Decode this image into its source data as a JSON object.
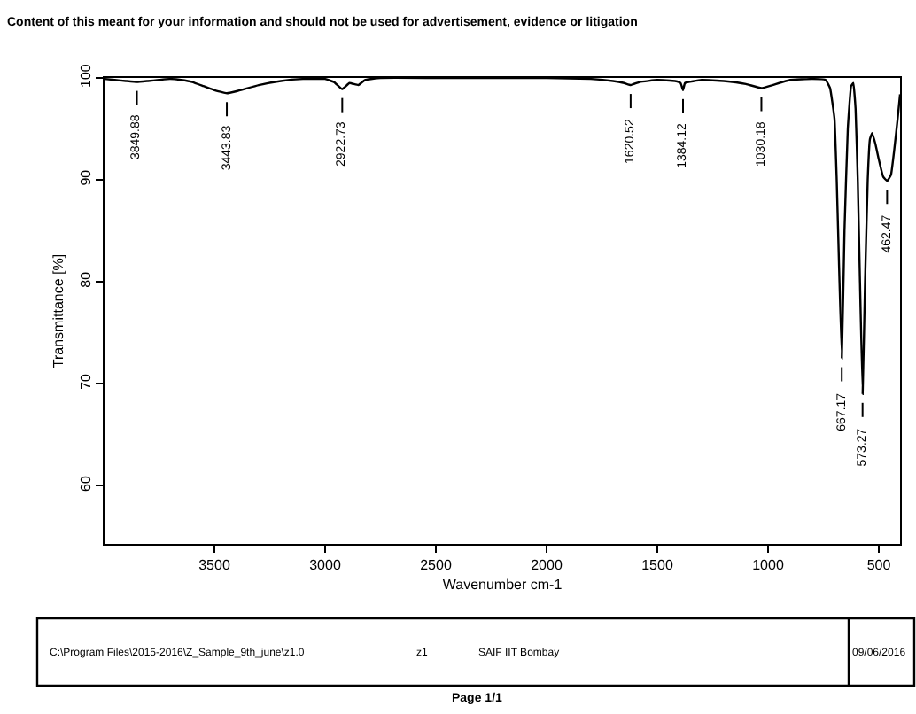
{
  "chart_data": {
    "type": "line",
    "title": "Content of this meant for your information and should not be used for advertisement, evidence or litigation",
    "xlabel": "Wavenumber cm-1",
    "ylabel": "Transmittance [%]",
    "xlim": [
      3996,
      404
    ],
    "ylim": [
      54.3,
      100
    ],
    "xticks": [
      3500,
      3000,
      2500,
      2000,
      1500,
      1000,
      500
    ],
    "yticks": [
      60,
      70,
      80,
      90,
      100
    ],
    "marker": "none",
    "line_style": "solid",
    "series": [
      {
        "color": "#000000",
        "x": [
          3996,
          3950,
          3900,
          3850,
          3800,
          3750,
          3700,
          3650,
          3600,
          3550,
          3500,
          3444,
          3400,
          3300,
          3200,
          3100,
          3000,
          2960,
          2923,
          2890,
          2850,
          2820,
          2750,
          2500,
          2000,
          1800,
          1700,
          1650,
          1620,
          1580,
          1500,
          1420,
          1395,
          1384,
          1375,
          1300,
          1200,
          1100,
          1030,
          980,
          900,
          800,
          740,
          720,
          700,
          690,
          680,
          667,
          655,
          640,
          625,
          615,
          605,
          595,
          585,
          573,
          562,
          550,
          540,
          530,
          515,
          500,
          480,
          462,
          445,
          430,
          415,
          404
        ],
        "values": [
          99.9,
          99.8,
          99.7,
          99.6,
          99.7,
          99.8,
          99.9,
          99.8,
          99.6,
          99.2,
          98.8,
          98.5,
          98.7,
          99.3,
          99.7,
          99.9,
          99.9,
          99.6,
          98.9,
          99.5,
          99.3,
          99.8,
          100,
          100,
          100,
          99.9,
          99.7,
          99.5,
          99.3,
          99.6,
          99.8,
          99.7,
          99.5,
          98.8,
          99.5,
          99.8,
          99.7,
          99.4,
          99.0,
          99.3,
          99.8,
          99.9,
          99.8,
          99.0,
          96,
          90,
          82,
          72.5,
          85,
          95,
          99.2,
          99.5,
          97,
          90,
          80,
          69.0,
          80,
          90,
          94,
          94.6,
          93.5,
          92,
          90.3,
          89.9,
          90.5,
          93,
          96,
          98.4
        ]
      }
    ],
    "annotations": [
      {
        "text": "3849.88",
        "x": 3849.88,
        "y": 99.6
      },
      {
        "text": "3443.83",
        "x": 3443.83,
        "y": 98.5
      },
      {
        "text": "2922.73",
        "x": 2922.73,
        "y": 98.9
      },
      {
        "text": "1620.52",
        "x": 1620.52,
        "y": 99.3
      },
      {
        "text": "1384.12",
        "x": 1384.12,
        "y": 98.8
      },
      {
        "text": "1030.18",
        "x": 1030.18,
        "y": 99.0
      },
      {
        "text": "667.17",
        "x": 667.17,
        "y": 72.5
      },
      {
        "text": "573.27",
        "x": 573.27,
        "y": 69.0
      },
      {
        "text": "462.47",
        "x": 462.47,
        "y": 89.9
      },
      "C:\\Program Files\\2015-2016\\Z_Sample_9th_june\\z1.0",
      "z1",
      "SAIF IIT Bombay",
      "09/06/2016",
      "Page 1/1"
    ]
  }
}
